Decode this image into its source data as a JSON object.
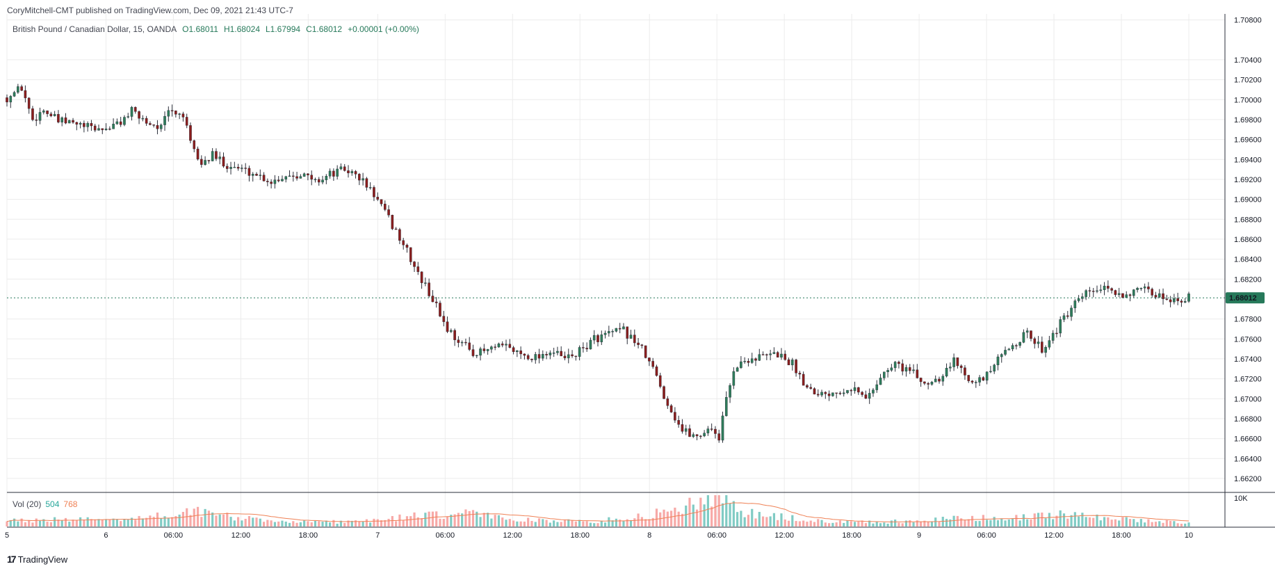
{
  "header": {
    "published_line": "CoryMitchell-CMT published on TradingView.com, Dec 09, 2021 21:43 UTC-7"
  },
  "legend": {
    "symbol": "British Pound / Canadian Dollar, 15, OANDA",
    "open": "O1.68011",
    "high": "H1.68024",
    "low": "L1.67994",
    "close": "C1.68012",
    "change": "+0.00001 (+0.00%)"
  },
  "volume_legend": {
    "label": "Vol (20)",
    "value": "504",
    "ma_value": "768"
  },
  "last_price_label": "1.68012",
  "vol_axis_label": "10K",
  "footer": {
    "brand": "TradingView",
    "logo_mark": "17"
  },
  "colors": {
    "up": "#26a69a",
    "down": "#ef5350",
    "candle_up_body": "#2e7d5b",
    "candle_down_body": "#8b1d1d",
    "vol_up": "#80cbc4",
    "vol_down": "#f7a9a7",
    "vol_ma": "#ef8054",
    "grid": "#ececec",
    "last_price": "#26795a"
  },
  "chart_data": {
    "type": "candlestick",
    "price_axis": {
      "ticks": [
        "1.70800",
        "1.70400",
        "1.70200",
        "1.70000",
        "1.69800",
        "1.69600",
        "1.69400",
        "1.69200",
        "1.69000",
        "1.68800",
        "1.68600",
        "1.68400",
        "1.68200",
        "1.67800",
        "1.67600",
        "1.67400",
        "1.67200",
        "1.67000",
        "1.66800",
        "1.66600",
        "1.66400",
        "1.66200"
      ],
      "range": [
        1.6606,
        1.7086
      ]
    },
    "time_axis": {
      "ticks": [
        "5",
        "6",
        "06:00",
        "12:00",
        "18:00",
        "7",
        "06:00",
        "12:00",
        "18:00",
        "8",
        "06:00",
        "12:00",
        "18:00",
        "9",
        "06:00",
        "12:00",
        "18:00",
        "10"
      ]
    },
    "last_price": 1.68012,
    "path_points": [
      [
        0,
        1.7002
      ],
      [
        4,
        1.7012
      ],
      [
        7,
        1.698
      ],
      [
        10,
        1.699
      ],
      [
        14,
        1.6978
      ],
      [
        18,
        1.6976
      ],
      [
        22,
        1.6972
      ],
      [
        26,
        1.697
      ],
      [
        30,
        1.6975
      ],
      [
        34,
        1.6988
      ],
      [
        38,
        1.6978
      ],
      [
        42,
        1.6972
      ],
      [
        44,
        1.6988
      ],
      [
        48,
        1.6985
      ],
      [
        50,
        1.6955
      ],
      [
        53,
        1.6935
      ],
      [
        56,
        1.6944
      ],
      [
        60,
        1.6935
      ],
      [
        64,
        1.693
      ],
      [
        68,
        1.6925
      ],
      [
        72,
        1.6918
      ],
      [
        76,
        1.6924
      ],
      [
        80,
        1.6926
      ],
      [
        84,
        1.6918
      ],
      [
        88,
        1.6925
      ],
      [
        92,
        1.693
      ],
      [
        96,
        1.6922
      ],
      [
        100,
        1.6905
      ],
      [
        104,
        1.688
      ],
      [
        108,
        1.6855
      ],
      [
        112,
        1.6825
      ],
      [
        116,
        1.68
      ],
      [
        120,
        1.677
      ],
      [
        124,
        1.6755
      ],
      [
        128,
        1.6745
      ],
      [
        132,
        1.675
      ],
      [
        136,
        1.6752
      ],
      [
        140,
        1.6745
      ],
      [
        144,
        1.6742
      ],
      [
        148,
        1.6748
      ],
      [
        152,
        1.674
      ],
      [
        156,
        1.6747
      ],
      [
        160,
        1.676
      ],
      [
        164,
        1.6765
      ],
      [
        168,
        1.6768
      ],
      [
        172,
        1.6755
      ],
      [
        176,
        1.673
      ],
      [
        180,
        1.6695
      ],
      [
        184,
        1.6668
      ],
      [
        188,
        1.6662
      ],
      [
        192,
        1.6672
      ],
      [
        194,
        1.666
      ],
      [
        196,
        1.67
      ],
      [
        198,
        1.673
      ],
      [
        202,
        1.674
      ],
      [
        206,
        1.6742
      ],
      [
        210,
        1.6745
      ],
      [
        214,
        1.6735
      ],
      [
        218,
        1.6712
      ],
      [
        222,
        1.6705
      ],
      [
        226,
        1.6708
      ],
      [
        230,
        1.6712
      ],
      [
        234,
        1.67
      ],
      [
        238,
        1.6722
      ],
      [
        242,
        1.6735
      ],
      [
        246,
        1.6728
      ],
      [
        250,
        1.6715
      ],
      [
        254,
        1.6722
      ],
      [
        258,
        1.6738
      ],
      [
        262,
        1.6722
      ],
      [
        266,
        1.6718
      ],
      [
        270,
        1.6738
      ],
      [
        274,
        1.6755
      ],
      [
        278,
        1.6765
      ],
      [
        282,
        1.675
      ],
      [
        286,
        1.677
      ],
      [
        290,
        1.679
      ],
      [
        294,
        1.6805
      ],
      [
        298,
        1.681
      ],
      [
        302,
        1.6805
      ],
      [
        306,
        1.6806
      ],
      [
        310,
        1.6808
      ],
      [
        314,
        1.6803
      ],
      [
        318,
        1.68
      ],
      [
        322,
        1.6801
      ]
    ],
    "volume_profile": [
      [
        0,
        0.2
      ],
      [
        20,
        0.22
      ],
      [
        40,
        0.3
      ],
      [
        50,
        0.55
      ],
      [
        56,
        0.4
      ],
      [
        70,
        0.18
      ],
      [
        90,
        0.15
      ],
      [
        100,
        0.2
      ],
      [
        112,
        0.35
      ],
      [
        120,
        0.35
      ],
      [
        124,
        0.45
      ],
      [
        140,
        0.22
      ],
      [
        160,
        0.15
      ],
      [
        176,
        0.4
      ],
      [
        184,
        0.6
      ],
      [
        188,
        0.9
      ],
      [
        194,
        1.0
      ],
      [
        200,
        0.45
      ],
      [
        220,
        0.18
      ],
      [
        240,
        0.15
      ],
      [
        258,
        0.25
      ],
      [
        280,
        0.3
      ],
      [
        290,
        0.42
      ],
      [
        300,
        0.28
      ],
      [
        312,
        0.18
      ],
      [
        322,
        0.12
      ]
    ]
  }
}
